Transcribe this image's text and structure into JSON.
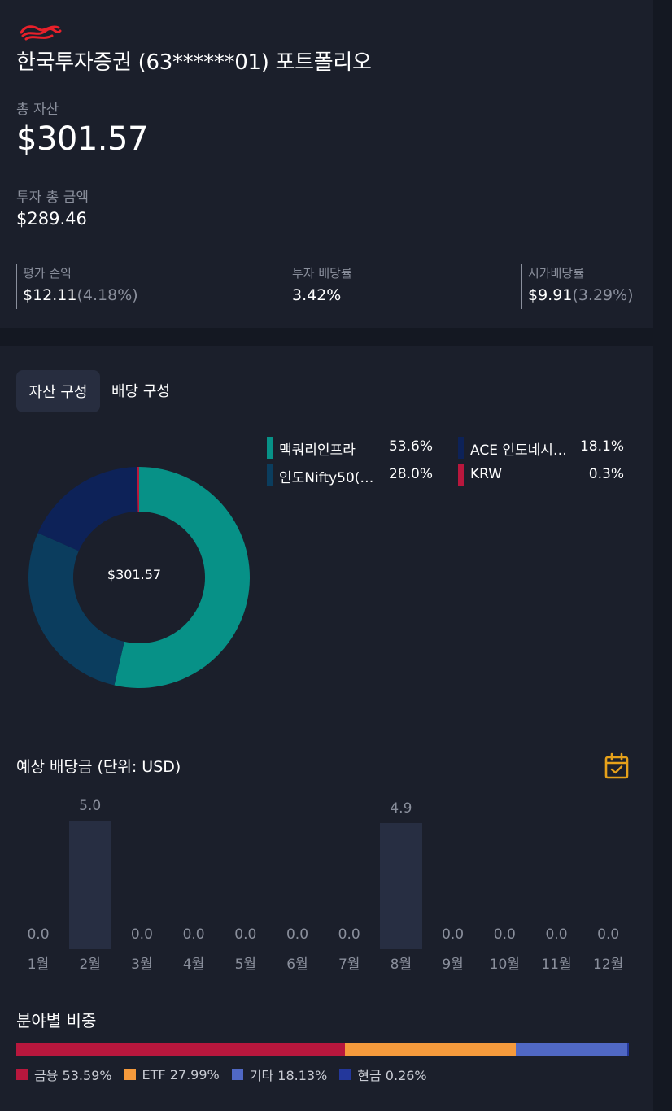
{
  "summary": {
    "account_title": "한국투자증권 (63******01) 포트폴리오",
    "total_assets_label": "총 자산",
    "total_assets_value": "$301.57",
    "invest_total_label": "투자 총 금액",
    "invest_total_value": "$289.46",
    "stats": [
      {
        "label": "평가 손익",
        "value": "$12.11",
        "sub": "(4.18%)"
      },
      {
        "label": "투자 배당률",
        "value": "3.42%",
        "sub": ""
      },
      {
        "label": "시가배당률",
        "value": "$9.91",
        "sub": "(3.29%)"
      }
    ]
  },
  "tabs": {
    "active": "자산 구성",
    "inactive": "배당 구성"
  },
  "composition": {
    "center_label": "$301.57",
    "legend": [
      {
        "name": "맥쿼리인프라",
        "pct": "53.6%",
        "value": 53.6,
        "color": "#079187"
      },
      {
        "name": "ACE 인도네시…",
        "pct": "18.1%",
        "value": 18.1,
        "color": "#0d2258"
      },
      {
        "name": "인도Nifty50(…",
        "pct": "28.0%",
        "value": 28.0,
        "color": "#0b3d5e"
      },
      {
        "name": "KRW",
        "pct": "0.3%",
        "value": 0.3,
        "color": "#b8173d"
      }
    ]
  },
  "dividends": {
    "title": "예상 배당금 (단위: USD)",
    "icon": "calendar-check-icon",
    "icon_color": "#e6a11a"
  },
  "chart_data": {
    "type": "bar",
    "categories": [
      "1월",
      "2월",
      "3월",
      "4월",
      "5월",
      "6월",
      "7월",
      "8월",
      "9월",
      "10월",
      "11월",
      "12월"
    ],
    "values": [
      0.0,
      5.0,
      0.0,
      0.0,
      0.0,
      0.0,
      0.0,
      4.9,
      0.0,
      0.0,
      0.0,
      0.0
    ],
    "value_labels": [
      "0.0",
      "5.0",
      "0.0",
      "0.0",
      "0.0",
      "0.0",
      "0.0",
      "4.9",
      "0.0",
      "0.0",
      "0.0",
      "0.0"
    ],
    "ylim": [
      0,
      5.0
    ],
    "title": "예상 배당금 (단위: USD)",
    "bar_color": "#272e42"
  },
  "sectors": {
    "title": "분야별 비중",
    "items": [
      {
        "label": "금융 53.59%",
        "value": 53.59,
        "color": "#b8173d"
      },
      {
        "label": "ETF 27.99%",
        "value": 27.99,
        "color": "#f59a3c"
      },
      {
        "label": "기타 18.13%",
        "value": 18.13,
        "color": "#5068c4"
      },
      {
        "label": "현금 0.26%",
        "value": 0.26,
        "color": "#23379b"
      }
    ]
  }
}
